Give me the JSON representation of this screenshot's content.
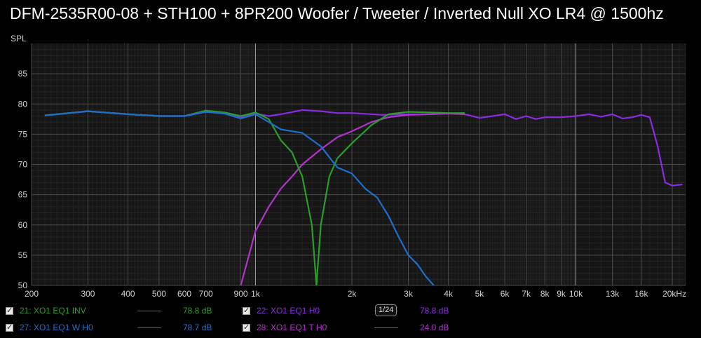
{
  "title": "DFM-2535R00-08 + STH100 + 8PR200 Woofer / Tweeter / Inverted Null XO LR4 @ 1500hz",
  "chart_data": {
    "type": "line",
    "ylabel": "SPL",
    "xscale": "log",
    "xlim": [
      200,
      22000
    ],
    "ylim": [
      50,
      90
    ],
    "y_ticks": [
      50,
      55,
      60,
      65,
      70,
      75,
      80,
      85
    ],
    "x_ticks": [
      {
        "v": 200,
        "label": "200"
      },
      {
        "v": 300,
        "label": "300"
      },
      {
        "v": 400,
        "label": "400"
      },
      {
        "v": 500,
        "label": "500"
      },
      {
        "v": 600,
        "label": "600"
      },
      {
        "v": 700,
        "label": "700"
      },
      {
        "v": 900,
        "label": "900"
      },
      {
        "v": 1000,
        "label": "1k"
      },
      {
        "v": 2000,
        "label": "2k"
      },
      {
        "v": 3000,
        "label": "3k"
      },
      {
        "v": 4000,
        "label": "4k"
      },
      {
        "v": 5000,
        "label": "5k"
      },
      {
        "v": 6000,
        "label": "6k"
      },
      {
        "v": 7000,
        "label": "7k"
      },
      {
        "v": 8000,
        "label": "8k"
      },
      {
        "v": 9000,
        "label": "9k"
      },
      {
        "v": 10000,
        "label": "10k"
      },
      {
        "v": 13000,
        "label": "13k"
      },
      {
        "v": 16000,
        "label": "16k"
      },
      {
        "v": 20000,
        "label": "20kHz"
      }
    ],
    "smoothing_label": "1/24",
    "series": [
      {
        "name": "21: XO1 EQ1 INV",
        "color": "#2a9d2a",
        "value_label": "78.8 dB",
        "points": [
          [
            220,
            78.1
          ],
          [
            300,
            78.8
          ],
          [
            400,
            78.3
          ],
          [
            500,
            78.0
          ],
          [
            600,
            78.0
          ],
          [
            700,
            78.9
          ],
          [
            800,
            78.6
          ],
          [
            900,
            78.0
          ],
          [
            1000,
            78.6
          ],
          [
            1100,
            77.5
          ],
          [
            1200,
            74.0
          ],
          [
            1300,
            72.0
          ],
          [
            1400,
            68.0
          ],
          [
            1500,
            60.0
          ],
          [
            1550,
            50.0
          ],
          [
            1600,
            60.0
          ],
          [
            1700,
            68.0
          ],
          [
            1800,
            71.0
          ],
          [
            2000,
            73.5
          ],
          [
            2300,
            76.5
          ],
          [
            2600,
            78.3
          ],
          [
            3000,
            78.7
          ],
          [
            3500,
            78.6
          ],
          [
            4000,
            78.5
          ],
          [
            4500,
            78.5
          ]
        ]
      },
      {
        "name": "22: XO1 EQ1 H0",
        "color": "#8a2be2",
        "value_label": "78.8 dB",
        "points": [
          [
            220,
            78.1
          ],
          [
            300,
            78.8
          ],
          [
            400,
            78.3
          ],
          [
            500,
            78.0
          ],
          [
            600,
            78.0
          ],
          [
            700,
            78.7
          ],
          [
            800,
            78.5
          ],
          [
            900,
            77.8
          ],
          [
            1000,
            78.4
          ],
          [
            1100,
            78.0
          ],
          [
            1200,
            78.3
          ],
          [
            1400,
            79.0
          ],
          [
            1600,
            78.8
          ],
          [
            1800,
            78.5
          ],
          [
            2000,
            78.5
          ],
          [
            2500,
            78.2
          ],
          [
            3000,
            78.3
          ],
          [
            3500,
            78.3
          ],
          [
            4000,
            78.5
          ],
          [
            4500,
            78.3
          ],
          [
            5000,
            77.7
          ],
          [
            5500,
            78.0
          ],
          [
            6000,
            78.3
          ],
          [
            6500,
            77.5
          ],
          [
            7000,
            78.0
          ],
          [
            7500,
            77.5
          ],
          [
            8000,
            77.8
          ],
          [
            9000,
            77.8
          ],
          [
            10000,
            78.0
          ],
          [
            11000,
            78.3
          ],
          [
            12000,
            77.9
          ],
          [
            13000,
            78.3
          ],
          [
            14000,
            77.6
          ],
          [
            15000,
            77.8
          ],
          [
            16000,
            78.2
          ],
          [
            17000,
            77.8
          ],
          [
            18000,
            73.0
          ],
          [
            19000,
            67.0
          ],
          [
            20000,
            66.5
          ],
          [
            21500,
            66.7
          ]
        ]
      },
      {
        "name": "27: XO1 EQ1 W H0",
        "color": "#1e6fc9",
        "value_label": "78.7 dB",
        "points": [
          [
            220,
            78.1
          ],
          [
            300,
            78.8
          ],
          [
            400,
            78.3
          ],
          [
            500,
            78.0
          ],
          [
            600,
            78.0
          ],
          [
            700,
            78.7
          ],
          [
            800,
            78.4
          ],
          [
            900,
            77.6
          ],
          [
            1000,
            78.3
          ],
          [
            1100,
            77.0
          ],
          [
            1200,
            75.8
          ],
          [
            1400,
            75.2
          ],
          [
            1600,
            73.0
          ],
          [
            1800,
            69.5
          ],
          [
            2000,
            68.5
          ],
          [
            2200,
            66.0
          ],
          [
            2400,
            64.5
          ],
          [
            2600,
            61.5
          ],
          [
            2800,
            58.0
          ],
          [
            3000,
            55.0
          ],
          [
            3200,
            53.5
          ],
          [
            3400,
            51.5
          ],
          [
            3600,
            50.0
          ]
        ]
      },
      {
        "name": "28: XO1 EQ1 T H0",
        "color": "#b034c8",
        "value_label": "24.0 dB",
        "points": [
          [
            900,
            50.0
          ],
          [
            1000,
            59.0
          ],
          [
            1100,
            63.0
          ],
          [
            1200,
            66.0
          ],
          [
            1300,
            68.0
          ],
          [
            1400,
            70.0
          ],
          [
            1600,
            72.5
          ],
          [
            1800,
            74.5
          ],
          [
            2000,
            75.5
          ],
          [
            2300,
            77.0
          ],
          [
            2600,
            77.8
          ],
          [
            3000,
            78.2
          ],
          [
            3500,
            78.3
          ],
          [
            4000,
            78.4
          ],
          [
            4500,
            78.3
          ]
        ]
      }
    ]
  }
}
